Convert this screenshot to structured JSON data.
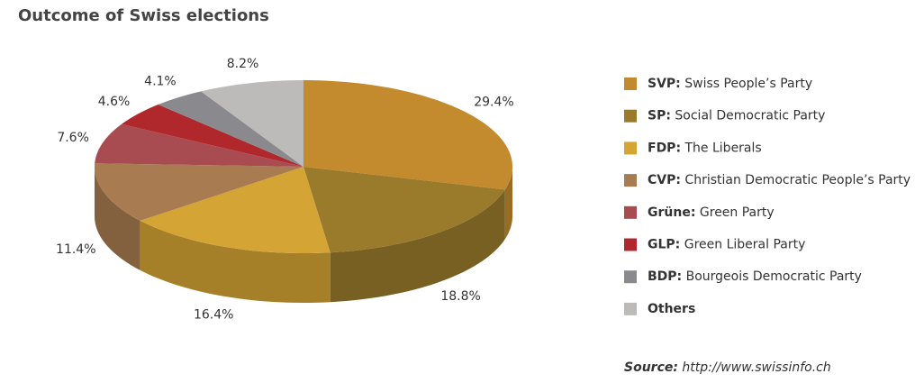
{
  "chart_data": {
    "type": "pie",
    "title": "Outcome of Swiss elections",
    "legend": [
      {
        "abbr": "SVP:",
        "label": "Swiss People’s Party"
      },
      {
        "abbr": "SP:",
        "label": "Social Democratic Party"
      },
      {
        "abbr": "FDP:",
        "label": "The Liberals"
      },
      {
        "abbr": "CVP:",
        "label": "Christian Democratic People’s Party"
      },
      {
        "abbr": "Grüne:",
        "label": "Green Party"
      },
      {
        "abbr": "GLP:",
        "label": "Green Liberal Party"
      },
      {
        "abbr": "BDP:",
        "label": "Bourgeois Democratic Party"
      },
      {
        "abbr": "Others"
      }
    ],
    "values": [
      29.4,
      18.8,
      16.4,
      11.4,
      7.6,
      4.6,
      4.1,
      8.2
    ],
    "value_labels": [
      "29.4%",
      "18.8%",
      "16.4%",
      "11.4%",
      "7.6%",
      "4.6%",
      "4.1%",
      "8.2%"
    ],
    "colors": [
      "#c48a2e",
      "#9a7b2c",
      "#d4a435",
      "#a87c50",
      "#a84c52",
      "#b0282c",
      "#8a8a8e",
      "#bdbbba"
    ],
    "legend_position": "right",
    "source": {
      "label": "Source:",
      "text": "http://www.swissinfo.ch"
    }
  }
}
